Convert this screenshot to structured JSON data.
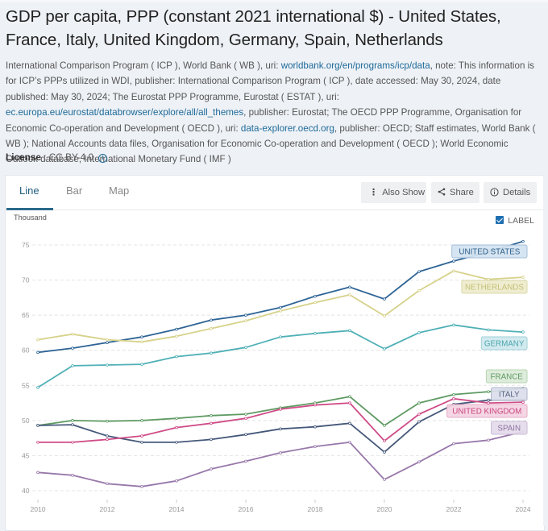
{
  "title": "GDP per capita, PPP (constant 2021 international $) - United States, France, Italy, United Kingdom, Germany, Spain, Netherlands",
  "source": {
    "segments": [
      {
        "text": "International Comparison Program ( ICP ), World Bank ( WB ), uri: ",
        "link": false
      },
      {
        "text": "worldbank.org/en/programs/icp/data",
        "link": true
      },
      {
        "text": ", note: This information is for ICP’s PPPs utilized in WDI, publisher: International Comparison Program ( ICP ), date accessed: May 30, 2024, date published: May 30, 2024; The Eurostat PPP Programme, Eurostat ( ESTAT ), uri: ",
        "link": false
      },
      {
        "text": "ec.europa.eu/eurostat/databrowser/explore/all/all_themes",
        "link": true
      },
      {
        "text": ", publisher: Eurostat; The OECD PPP Programme, Organisation for Economic Co-operation and Development ( OECD ), uri: ",
        "link": false
      },
      {
        "text": "data-explorer.oecd.org",
        "link": true
      },
      {
        "text": ", publisher: OECD; Staff estimates, World Bank ( WB ); National Accounts data files, Organisation for Economic Co-operation and Development ( OECD ); World Economic Outlook database, International Monetary Fund ( IMF )",
        "link": false
      }
    ]
  },
  "license": {
    "label": "License",
    "value": "CC BY-4.0",
    "icon": "info-icon"
  },
  "tabs": [
    {
      "label": "Line",
      "active": true
    },
    {
      "label": "Bar",
      "active": false
    },
    {
      "label": "Map",
      "active": false
    }
  ],
  "toolbar": {
    "also_show": {
      "label": "Also Show",
      "icon": "vertical-dots-icon"
    },
    "share": {
      "label": "Share",
      "icon": "share-icon"
    },
    "details": {
      "label": "Details",
      "icon": "info-icon"
    }
  },
  "label_toggle": {
    "label": "LABEL",
    "checked": true
  },
  "chart_data": {
    "type": "line",
    "title": "GDP per capita, PPP (constant 2021 international $)",
    "ylabel": "Thousand",
    "xlabel": "",
    "x": [
      2010,
      2011,
      2012,
      2013,
      2014,
      2015,
      2016,
      2017,
      2018,
      2019,
      2020,
      2021,
      2022,
      2023,
      2024
    ],
    "xticks": [
      "2010",
      "2012",
      "2014",
      "2016",
      "2018",
      "2020",
      "2022",
      "2024"
    ],
    "yticks": [
      "40",
      "45",
      "50",
      "55",
      "60",
      "65",
      "70",
      "75"
    ],
    "ylim": [
      39,
      77
    ],
    "grid": true,
    "legend": "inline-labels-right",
    "series": [
      {
        "name": "UNITED STATES",
        "color": "#2e6496",
        "label_bg": "#d3e3f1",
        "label_border": "#9dbad6",
        "label_color": "#2e5f88",
        "values": [
          59.7,
          60.3,
          61.1,
          61.9,
          63.0,
          64.3,
          65.0,
          66.1,
          67.7,
          69.0,
          67.3,
          71.2,
          72.7,
          74.0,
          75.5
        ]
      },
      {
        "name": "NETHERLANDS",
        "color": "#d6d28a",
        "label_bg": "#eeeccd",
        "label_border": "#d9d6a2",
        "label_color": "#c4bf74",
        "values": [
          61.5,
          62.3,
          61.5,
          61.2,
          62.0,
          63.1,
          64.2,
          65.6,
          66.8,
          67.9,
          64.9,
          68.5,
          71.3,
          70.1,
          70.4
        ]
      },
      {
        "name": "GERMANY",
        "color": "#4fb0b6",
        "label_bg": "#cfe9ee",
        "label_border": "#97cfd6",
        "label_color": "#4aa5ae",
        "values": [
          54.7,
          57.8,
          57.9,
          58.0,
          59.1,
          59.6,
          60.4,
          61.9,
          62.4,
          62.8,
          60.2,
          62.5,
          63.6,
          62.9,
          62.6
        ]
      },
      {
        "name": "FRANCE",
        "color": "#5e9a62",
        "label_bg": "#dcebd8",
        "label_border": "#b0d1aa",
        "label_color": "#5f9a62",
        "values": [
          49.3,
          50.0,
          49.9,
          50.0,
          50.3,
          50.7,
          50.9,
          51.8,
          52.5,
          53.4,
          49.3,
          52.5,
          53.7,
          54.1,
          54.6
        ]
      },
      {
        "name": "ITALY",
        "color": "#45587a",
        "label_bg": "#dcdfec",
        "label_border": "#a9afc8",
        "label_color": "#55627f",
        "values": [
          49.3,
          49.4,
          47.8,
          46.9,
          46.9,
          47.3,
          48.0,
          48.8,
          49.1,
          49.6,
          45.5,
          49.8,
          52.3,
          52.9,
          52.9
        ]
      },
      {
        "name": "UNITED KINGDOM",
        "color": "#cf4c87",
        "label_bg": "#f5d3e2",
        "label_border": "#e6a3c2",
        "label_color": "#c9467f",
        "values": [
          46.9,
          46.9,
          47.3,
          47.8,
          49.0,
          49.6,
          50.3,
          51.6,
          52.2,
          52.5,
          47.1,
          50.9,
          53.1,
          52.5,
          52.6
        ]
      },
      {
        "name": "SPAIN",
        "color": "#9878aa",
        "label_bg": "#e5dcec",
        "label_border": "#c6b6d3",
        "label_color": "#8b74a0",
        "values": [
          42.6,
          42.2,
          41.0,
          40.6,
          41.4,
          43.1,
          44.2,
          45.4,
          46.3,
          46.9,
          41.6,
          44.1,
          46.7,
          47.2,
          48.4
        ]
      }
    ]
  }
}
